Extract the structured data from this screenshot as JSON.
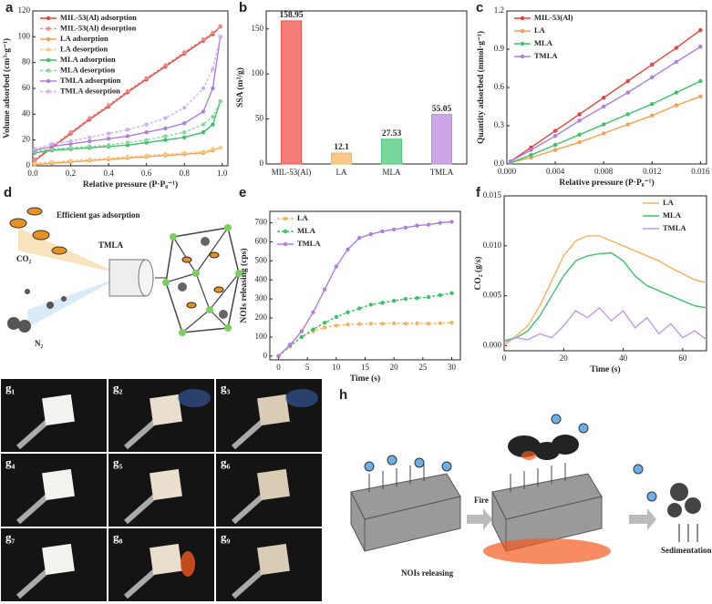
{
  "panel_labels": [
    "a",
    "b",
    "c",
    "d",
    "e",
    "f",
    "g",
    "h"
  ],
  "chart_data": [
    {
      "type": "line",
      "xlabel": "Relative pressure (P·P₀⁻¹)",
      "ylabel": "Volume adsorbed (cm³·g⁻¹)",
      "x": [
        0.01,
        0.1,
        0.2,
        0.3,
        0.4,
        0.5,
        0.6,
        0.7,
        0.8,
        0.9,
        0.95,
        0.99
      ],
      "xlim": [
        0,
        1.03
      ],
      "xticks": [
        {
          "value": 0,
          "label": "0.0"
        },
        0.2,
        0.4,
        0.6,
        0.8,
        {
          "value": 1,
          "label": "1.0"
        }
      ],
      "ylim": [
        0,
        120
      ],
      "yticks": [
        0,
        20,
        40,
        60,
        80,
        100,
        120
      ],
      "legend": "upper left",
      "series": [
        {
          "name": "MIL-53(Al) adsorption",
          "color": "#e8413c",
          "dashed": false,
          "values": [
            4,
            14,
            25,
            36,
            46,
            57,
            67,
            77,
            87,
            97,
            102,
            108
          ]
        },
        {
          "name": "MIL-53(Al) desorption",
          "color": "#f08a8a",
          "dashed": true,
          "values": [
            5,
            15,
            26,
            37,
            47,
            58,
            68,
            78,
            88,
            98,
            103,
            108
          ]
        },
        {
          "name": "LA adsorption",
          "color": "#f5a04a",
          "dashed": false,
          "values": [
            1,
            2,
            3,
            4,
            5,
            6,
            7,
            8,
            9,
            10,
            12,
            14
          ]
        },
        {
          "name": "LA desorption",
          "color": "#f9c98a",
          "dashed": true,
          "values": [
            2,
            3,
            4,
            5,
            6,
            7,
            8,
            9,
            10,
            11,
            13,
            14
          ]
        },
        {
          "name": "MLA adsorption",
          "color": "#3cc26a",
          "dashed": false,
          "values": [
            10,
            12,
            13,
            14,
            15,
            16,
            18,
            20,
            22,
            26,
            32,
            50
          ]
        },
        {
          "name": "MLA desorption",
          "color": "#85d99e",
          "dashed": true,
          "values": [
            11,
            13,
            14,
            15,
            16,
            18,
            20,
            23,
            26,
            32,
            38,
            50
          ]
        },
        {
          "name": "TMLA adsorption",
          "color": "#b07ddc",
          "dashed": false,
          "values": [
            12,
            15,
            17,
            19,
            21,
            23,
            26,
            29,
            33,
            42,
            60,
            100
          ]
        },
        {
          "name": "TMLA desorption",
          "color": "#d2b0ea",
          "dashed": true,
          "values": [
            13,
            17,
            19,
            22,
            25,
            28,
            32,
            37,
            45,
            60,
            75,
            100
          ]
        }
      ]
    },
    {
      "type": "bar",
      "ylabel": "SSA (m²/g)",
      "categories": [
        "MIL-53(Al)",
        "LA",
        "MLA",
        "TMLA"
      ],
      "values": [
        158.95,
        12.1,
        27.53,
        55.05
      ],
      "colors": [
        "#f0524d",
        "#f7b45f",
        "#4cc97a",
        "#b98ae0"
      ],
      "ylim": [
        0,
        170
      ],
      "yticks": [
        0,
        50,
        100,
        150
      ]
    },
    {
      "type": "line",
      "xlabel": "Relative pressure (P·P₀⁻¹)",
      "ylabel": "Quantity adsorbed (mmol·g⁻¹)",
      "x": [
        0.0003,
        0.002,
        0.004,
        0.006,
        0.008,
        0.01,
        0.012,
        0.014,
        0.016
      ],
      "xlim": [
        0,
        0.0165
      ],
      "xticks": [
        {
          "value": 0,
          "label": "0.000"
        },
        {
          "value": 0.004,
          "label": "0.004"
        },
        {
          "value": 0.008,
          "label": "0.008"
        },
        0.012,
        0.016
      ],
      "ylim": [
        0,
        1.2
      ],
      "yticks": [
        {
          "value": 0,
          "label": "0.0"
        },
        0.3,
        0.6,
        0.9,
        {
          "value": 1.2,
          "label": "1.2"
        }
      ],
      "legend": "upper left",
      "series": [
        {
          "name": "MIL-53(Al)",
          "color": "#e8413c",
          "dashed": false,
          "values": [
            0.02,
            0.13,
            0.26,
            0.39,
            0.52,
            0.65,
            0.78,
            0.91,
            1.05
          ]
        },
        {
          "name": "LA",
          "color": "#f5a04a",
          "dashed": false,
          "values": [
            0.01,
            0.05,
            0.11,
            0.17,
            0.24,
            0.31,
            0.38,
            0.46,
            0.53
          ]
        },
        {
          "name": "MLA",
          "color": "#3cc26a",
          "dashed": false,
          "values": [
            0.01,
            0.07,
            0.15,
            0.23,
            0.31,
            0.39,
            0.47,
            0.56,
            0.65
          ]
        },
        {
          "name": "TMLA",
          "color": "#b07ddc",
          "dashed": false,
          "values": [
            0.02,
            0.11,
            0.22,
            0.34,
            0.45,
            0.56,
            0.68,
            0.8,
            0.92
          ]
        }
      ]
    },
    {
      "type": "line",
      "xlabel": "Time (s)",
      "ylabel": "NOIs releasing (cps)",
      "x": [
        0,
        2,
        4,
        6,
        8,
        10,
        12,
        14,
        16,
        18,
        20,
        22,
        24,
        26,
        28,
        30
      ],
      "xlim": [
        -1.5,
        31.5
      ],
      "xticks": [
        0,
        5,
        10,
        15,
        20,
        25,
        30
      ],
      "ylim": [
        -20,
        760
      ],
      "yticks": [
        0,
        100,
        200,
        300,
        400,
        500,
        600,
        700
      ],
      "legend": "upper left",
      "series": [
        {
          "name": "LA",
          "color": "#f7b45f",
          "dashed": true,
          "values": [
            0,
            50,
            100,
            130,
            150,
            160,
            165,
            168,
            170,
            170,
            172,
            170,
            172,
            170,
            173,
            175
          ]
        },
        {
          "name": "MLA",
          "color": "#3cc26a",
          "dashed": true,
          "values": [
            0,
            55,
            100,
            140,
            175,
            205,
            230,
            250,
            270,
            280,
            290,
            300,
            305,
            310,
            320,
            330
          ]
        },
        {
          "name": "TMLA",
          "color": "#b07ddc",
          "dashed": false,
          "values": [
            0,
            60,
            130,
            230,
            350,
            470,
            560,
            620,
            640,
            655,
            665,
            675,
            685,
            690,
            700,
            705
          ]
        }
      ]
    },
    {
      "type": "line",
      "xlabel": "Time (s)",
      "ylabel": "CO₂ (g/s)",
      "x": [
        0,
        4,
        8,
        12,
        16,
        20,
        24,
        28,
        32,
        36,
        40,
        44,
        48,
        52,
        56,
        60,
        64,
        68
      ],
      "xlim": [
        0,
        68
      ],
      "xticks": [
        0,
        20,
        40,
        60
      ],
      "ylim": [
        -0.0005,
        0.015
      ],
      "yticks": [
        {
          "value": 0,
          "label": "0.000"
        },
        0.005,
        {
          "value": 0.01,
          "label": "0.010"
        },
        0.015
      ],
      "legend": "upper right",
      "markers": false,
      "series": [
        {
          "name": "LA",
          "color": "#f5b060",
          "dashed": false,
          "values": [
            0,
            0.001,
            0.002,
            0.004,
            0.0065,
            0.009,
            0.0105,
            0.011,
            0.011,
            0.0105,
            0.01,
            0.0095,
            0.009,
            0.0085,
            0.0078,
            0.0072,
            0.0066,
            0.0063
          ]
        },
        {
          "name": "MLA",
          "color": "#3cc26a",
          "dashed": false,
          "values": [
            0.0005,
            0.0008,
            0.0015,
            0.003,
            0.005,
            0.007,
            0.0085,
            0.009,
            0.0092,
            0.0093,
            0.0085,
            0.007,
            0.006,
            0.0055,
            0.005,
            0.0045,
            0.004,
            0.0038
          ]
        },
        {
          "name": "TMLA",
          "color": "#c29ae6",
          "dashed": false,
          "values": [
            0.0003,
            0.0008,
            0.0006,
            0.0012,
            0.0008,
            0.002,
            0.0035,
            0.0028,
            0.0038,
            0.0025,
            0.0035,
            0.0018,
            0.0028,
            0.0012,
            0.0022,
            0.0008,
            0.0015,
            0.0006
          ]
        }
      ]
    }
  ],
  "schematic_d": {
    "title": "Efficient gas adsorption",
    "gas1": "CO₂",
    "gas2": "N₂",
    "material": "TMLA"
  },
  "photos_g": [
    "g₁",
    "g₂",
    "g₃",
    "g₄",
    "g₅",
    "g₆",
    "g₇",
    "g₈",
    "g₉"
  ],
  "schematic_h": {
    "fire": "Fire",
    "release": "NOIs releasing",
    "end": "Sedimentation"
  }
}
